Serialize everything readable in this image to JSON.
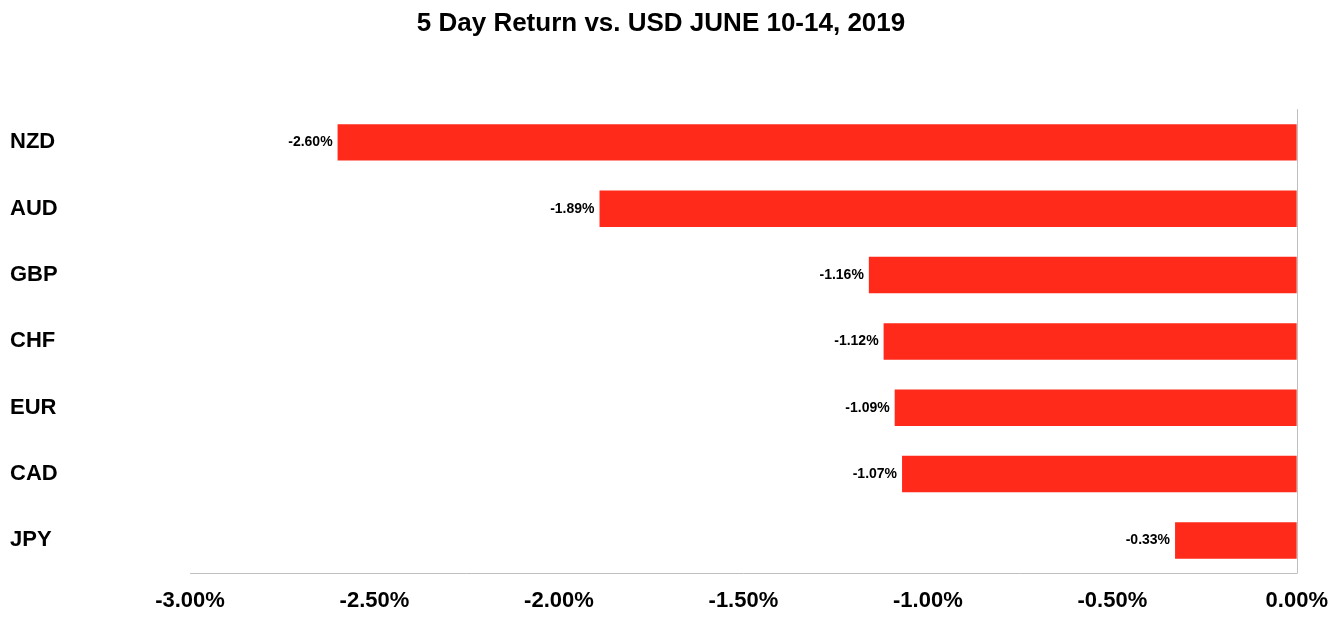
{
  "chart_data": {
    "type": "bar",
    "orientation": "horizontal",
    "title": "5 Day Return vs. USD JUNE 10-14, 2019",
    "categories": [
      "NZD",
      "AUD",
      "GBP",
      "CHF",
      "EUR",
      "CAD",
      "JPY"
    ],
    "values": [
      -2.6,
      -1.89,
      -1.16,
      -1.12,
      -1.09,
      -1.07,
      -0.33
    ],
    "value_labels": [
      "-2.60%",
      "-1.89%",
      "-1.16%",
      "-1.12%",
      "-1.09%",
      "-1.07%",
      "-0.33%"
    ],
    "data_labels": true,
    "color": "#ff2a1a",
    "xlim": [
      -3,
      0
    ],
    "xticks": [
      {
        "value": -3,
        "label": "-3.00%"
      },
      {
        "value": -2.5,
        "label": "-2.50%"
      },
      {
        "value": -2,
        "label": "-2.00%"
      },
      {
        "value": -1.5,
        "label": "-1.50%"
      },
      {
        "value": -1,
        "label": "-1.00%"
      },
      {
        "value": -0.5,
        "label": "-0.50%"
      },
      {
        "value": 0,
        "label": "0.00%"
      }
    ],
    "grid": false
  }
}
